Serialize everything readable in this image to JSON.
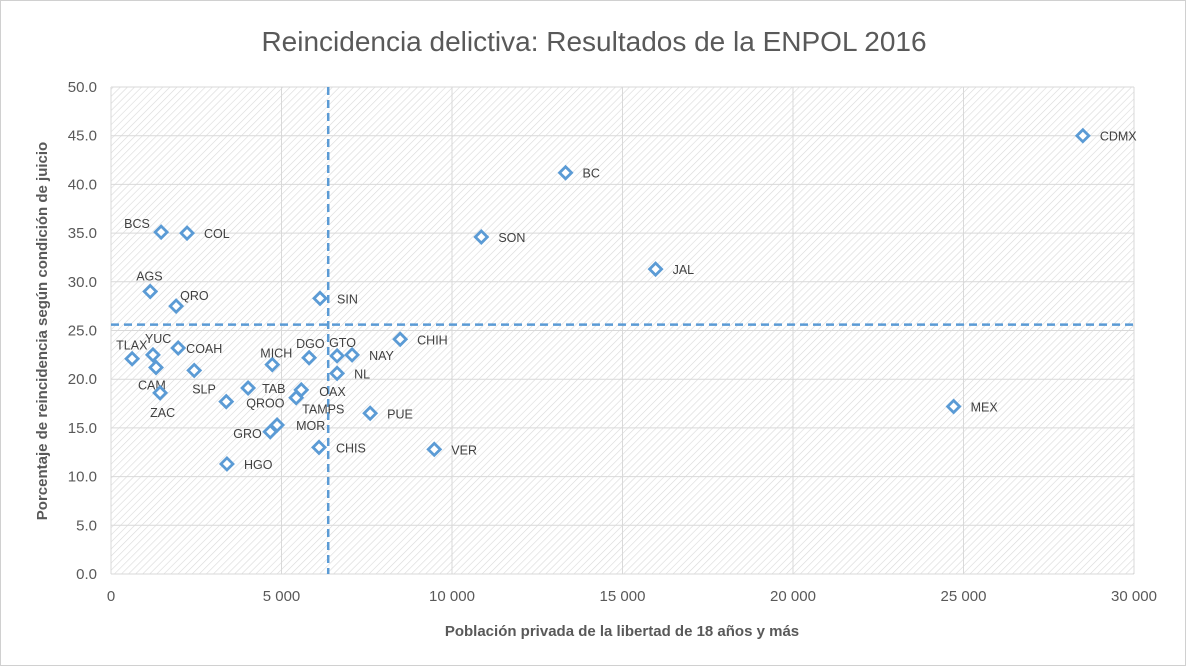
{
  "chart_data": {
    "type": "scatter",
    "title": "Reincidencia delictiva: Resultados de la ENPOL 2016",
    "xlabel": "Población privada de la libertad de 18 años y más",
    "ylabel": "Porcentaje de reincidencia según condición de juicio",
    "xlim": [
      0,
      30000
    ],
    "ylim": [
      0,
      50
    ],
    "x_ticks": [
      "0",
      "5 000",
      "10 000",
      "15 000",
      "20 000",
      "25 000",
      "30 000"
    ],
    "y_ticks": [
      "0.0",
      "5.0",
      "10.0",
      "15.0",
      "20.0",
      "25.0",
      "30.0",
      "35.0",
      "40.0",
      "45.0",
      "50.0"
    ],
    "grid": true,
    "marker_color": "#5b9bd5",
    "reference_lines": {
      "x": 6370,
      "y": 25.6,
      "style": "dashed",
      "color": "#5b9bd5"
    },
    "points": [
      {
        "label": "CDMX",
        "x": 28500,
        "y": 45.0
      },
      {
        "label": "BC",
        "x": 13330,
        "y": 41.2
      },
      {
        "label": "SON",
        "x": 10860,
        "y": 34.6
      },
      {
        "label": "JAL",
        "x": 15970,
        "y": 31.3
      },
      {
        "label": "MEX",
        "x": 24710,
        "y": 17.2
      },
      {
        "label": "BCS",
        "x": 1470,
        "y": 35.1
      },
      {
        "label": "COL",
        "x": 2230,
        "y": 35.0
      },
      {
        "label": "AGS",
        "x": 1150,
        "y": 29.0
      },
      {
        "label": "QRO",
        "x": 1910,
        "y": 27.5
      },
      {
        "label": "SIN",
        "x": 6130,
        "y": 28.3
      },
      {
        "label": "CHIH",
        "x": 8480,
        "y": 24.1
      },
      {
        "label": "TLAX",
        "x": 620,
        "y": 22.1
      },
      {
        "label": "YUC",
        "x": 1230,
        "y": 22.5
      },
      {
        "label": "COAH",
        "x": 1970,
        "y": 23.2
      },
      {
        "label": "CAM",
        "x": 1320,
        "y": 21.2
      },
      {
        "label": "SLP",
        "x": 2440,
        "y": 20.9
      },
      {
        "label": "ZAC",
        "x": 1440,
        "y": 18.6
      },
      {
        "label": "MICH",
        "x": 4730,
        "y": 21.5
      },
      {
        "label": "DGO",
        "x": 5810,
        "y": 22.2
      },
      {
        "label": "GTO",
        "x": 6630,
        "y": 22.4
      },
      {
        "label": "NAY",
        "x": 7070,
        "y": 22.5
      },
      {
        "label": "NL",
        "x": 6630,
        "y": 20.6
      },
      {
        "label": "TAB",
        "x": 4020,
        "y": 19.1
      },
      {
        "label": "QROO",
        "x": 3380,
        "y": 17.7
      },
      {
        "label": "OAX",
        "x": 5580,
        "y": 18.9
      },
      {
        "label": "TAMPS",
        "x": 5430,
        "y": 18.1
      },
      {
        "label": "PUE",
        "x": 7600,
        "y": 16.5
      },
      {
        "label": "MOR",
        "x": 4870,
        "y": 15.3
      },
      {
        "label": "GRO",
        "x": 4670,
        "y": 14.6
      },
      {
        "label": "CHIS",
        "x": 6100,
        "y": 13.0
      },
      {
        "label": "VER",
        "x": 9480,
        "y": 12.8
      },
      {
        "label": "HGO",
        "x": 3400,
        "y": 11.3
      }
    ]
  }
}
